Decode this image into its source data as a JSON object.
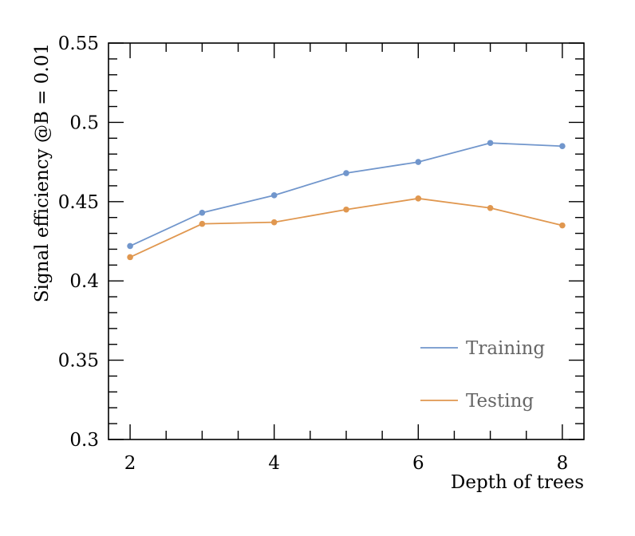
{
  "chart_data": {
    "type": "line",
    "title": "",
    "xlabel": "Depth of trees",
    "ylabel": "Signal efficiency @B = 0.01",
    "xlim": [
      1.7,
      8.3
    ],
    "ylim": [
      0.3,
      0.55
    ],
    "x_ticks": [
      2,
      4,
      6,
      8
    ],
    "y_ticks": [
      0.3,
      0.35,
      0.4,
      0.45,
      0.5,
      0.55
    ],
    "x_tick_labels": [
      "2",
      "4",
      "6",
      "8"
    ],
    "y_tick_labels": [
      "0.3",
      "0.35",
      "0.4",
      "0.45",
      "0.5",
      "0.55"
    ],
    "x": [
      2,
      3,
      4,
      5,
      6,
      7,
      8
    ],
    "series": [
      {
        "name": "Training",
        "color": "#7196cc",
        "values": [
          0.422,
          0.443,
          0.454,
          0.468,
          0.475,
          0.487,
          0.485
        ]
      },
      {
        "name": "Testing",
        "color": "#e0974f",
        "values": [
          0.415,
          0.436,
          0.437,
          0.445,
          0.452,
          0.446,
          0.435
        ]
      }
    ],
    "legend": {
      "position": "bottom-right"
    },
    "grid": false
  }
}
